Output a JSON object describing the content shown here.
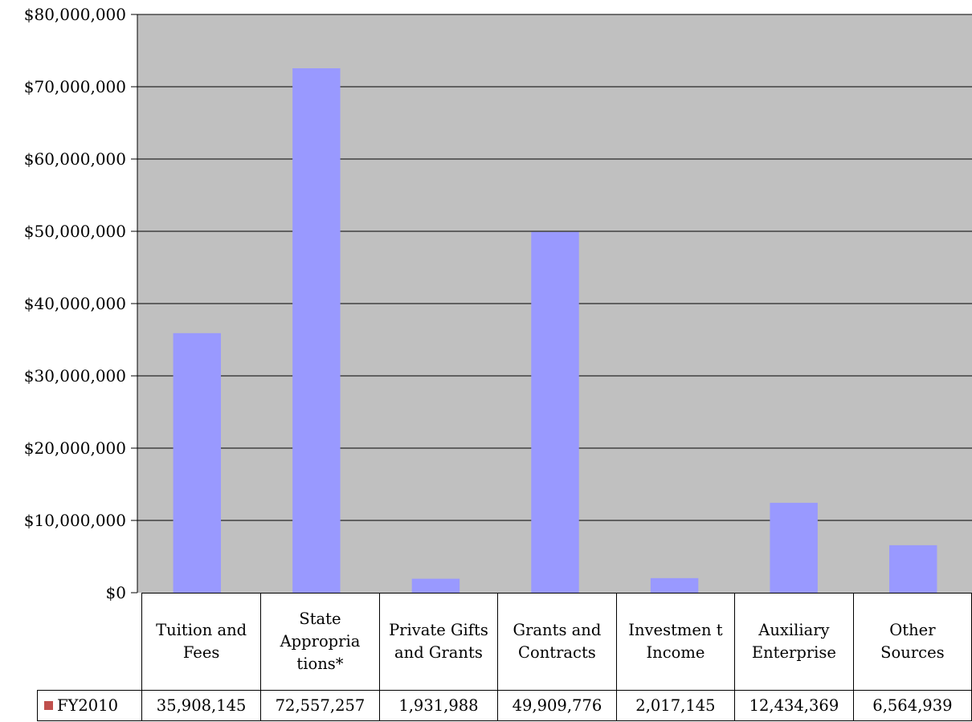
{
  "chart_data": {
    "type": "bar",
    "categories": [
      "Tuition and Fees",
      "State Appropria tions*",
      "Private Gifts and Grants",
      "Grants and Contracts",
      "Investmen t Income",
      "Auxiliary Enterprise",
      "Other Sources"
    ],
    "series": [
      {
        "name": "FY2010",
        "values": [
          35908145,
          72557257,
          1931988,
          49909776,
          2017145,
          12434369,
          6564939
        ],
        "value_labels": [
          "35,908,145",
          "72,557,257",
          "1,931,988",
          "49,909,776",
          "2,017,145",
          "12,434,369",
          "6,564,939"
        ],
        "color": "#9999ff",
        "legend_color": "#c0504d"
      }
    ],
    "ylim": [
      0,
      80000000
    ],
    "yticks": [
      0,
      10000000,
      20000000,
      30000000,
      40000000,
      50000000,
      60000000,
      70000000,
      80000000
    ],
    "ytick_labels": [
      "$0",
      "$10,000,000",
      "$20,000,000",
      "$30,000,000",
      "$40,000,000",
      "$50,000,000",
      "$60,000,000",
      "$70,000,000",
      "$80,000,000"
    ],
    "title": "",
    "xlabel": "",
    "ylabel": "",
    "grid": true,
    "legend": "data-table",
    "plot_background": "#c0c0c0"
  }
}
